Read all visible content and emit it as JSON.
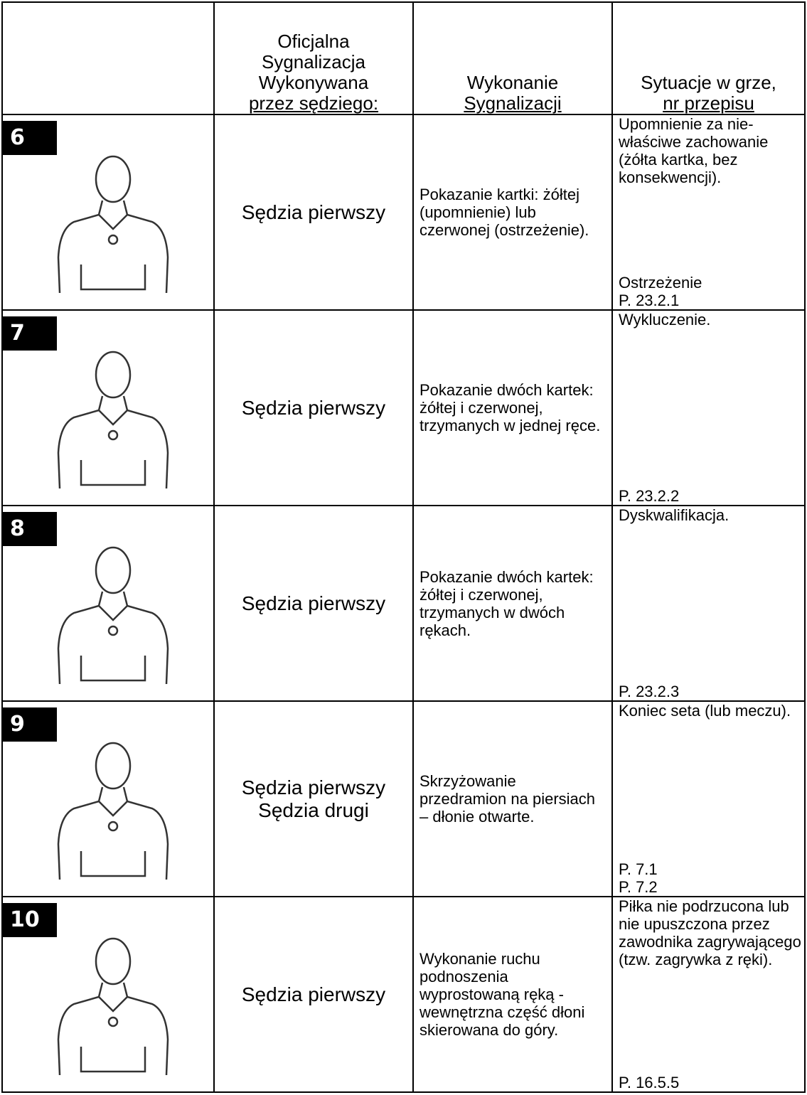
{
  "header": {
    "columns": [
      [
        "Oficjalna",
        "Sygnalizacja",
        "Wykonywana",
        "przez sędziego:"
      ],
      [
        "Wykonanie",
        "Sygnalizacji"
      ],
      [
        "Sytuacje w grze,",
        "nr przepisu"
      ]
    ]
  },
  "rows": [
    {
      "number": "6",
      "referee": [
        "Sędzia pierwszy"
      ],
      "description": "Pokazanie kartki: żółtej (upomnienie) lub czerwonej (ostrzeżenie).",
      "situation": "Upomnienie za nie-właściwe zachowanie (żółta kartka, bez konsekwencji).",
      "rule": [
        "Ostrzeżenie",
        "P. 23.2.1"
      ]
    },
    {
      "number": "7",
      "referee": [
        "Sędzia pierwszy"
      ],
      "description": "Pokazanie dwóch kartek: żółtej i czerwonej, trzymanych w jednej ręce.",
      "situation": "Wykluczenie.",
      "rule": [
        "P. 23.2.2"
      ]
    },
    {
      "number": "8",
      "referee": [
        "Sędzia pierwszy"
      ],
      "description": "Pokazanie dwóch kartek: żółtej i czerwonej, trzymanych w dwóch rękach.",
      "situation": "Dyskwalifikacja.",
      "rule": [
        "P. 23.2.3"
      ]
    },
    {
      "number": "9",
      "referee": [
        "Sędzia pierwszy",
        "Sędzia drugi"
      ],
      "description": "Skrzyżowanie przedramion na piersiach – dłonie otwarte.",
      "situation": "Koniec seta (lub meczu).",
      "rule": [
        "P. 7.1",
        "P. 7.2"
      ]
    },
    {
      "number": "10",
      "referee": [
        "Sędzia pierwszy"
      ],
      "description": "Wykonanie ruchu podnoszenia wyprostowaną ręką - wewnętrzna część dłoni skierowana do góry.",
      "situation": "Piłka nie podrzucona lub nie upuszczona przez zawodnika zagrywającego (tzw. zagrywka z ręki).",
      "rule": [
        "P. 16.5.5"
      ]
    }
  ]
}
